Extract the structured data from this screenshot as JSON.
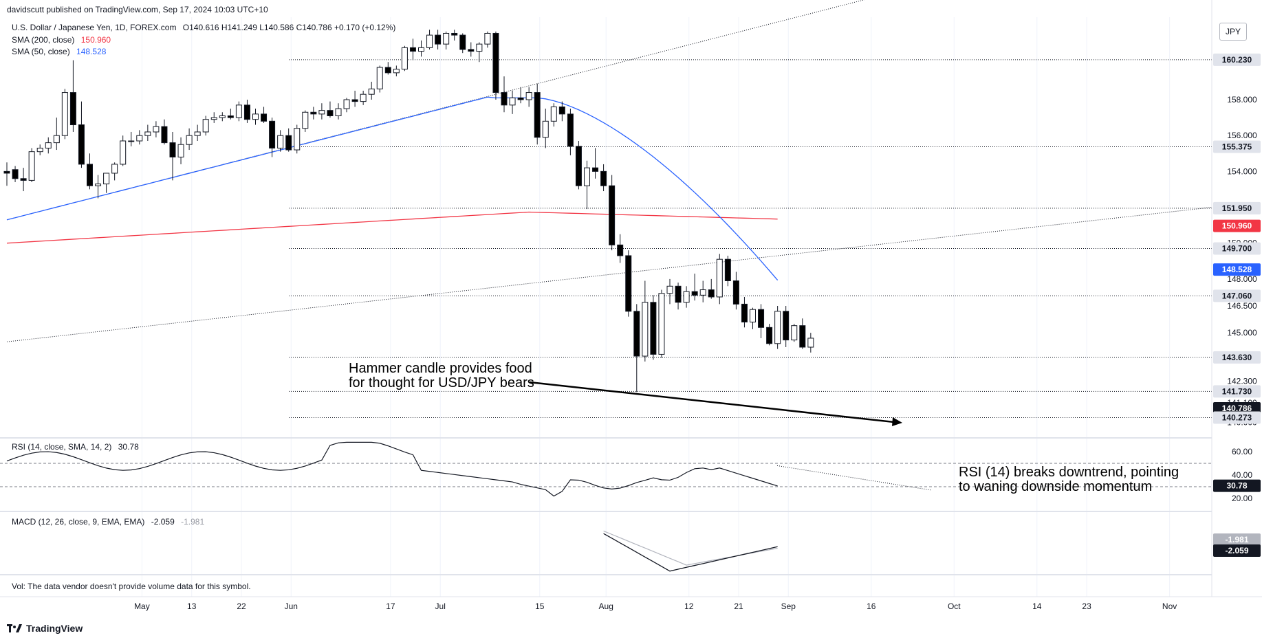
{
  "header": {
    "publisher": "davidscutt published on TradingView.com, Sep 17, 2024 10:03 UTC+10",
    "symbol": "U.S. Dollar / Japanese Yen, 1D, FOREX.com",
    "ohlc": "O140.616 H141.249 L140.586 C140.786 +0.170 (+0.12%)"
  },
  "currency_button": "JPY",
  "indicators": {
    "sma200": {
      "label": "SMA (200, close)",
      "value": "150.960",
      "color": "#f23645"
    },
    "sma50": {
      "label": "SMA (50, close)",
      "value": "148.528",
      "color": "#2962ff"
    },
    "rsi": {
      "label": "RSI (14, close, SMA, 14, 2)",
      "value": "30.78"
    },
    "macd": {
      "label": "MACD (12, 26, close, 9, EMA, EMA)",
      "value": "-2.059",
      "signal": "-1.981"
    }
  },
  "volume_note": "Vol: The data vendor doesn't provide volume data for this symbol.",
  "annotations": {
    "hammer": [
      "Hammer candle provides food",
      "for thought for USD/JPY bears"
    ],
    "rsi": [
      "RSI (14) breaks downtrend, pointing",
      "to waning downside momentum"
    ]
  },
  "footer_logo": "TradingView",
  "chart_data": [
    {
      "type": "candlestick",
      "title": "U.S. Dollar / Japanese Yen, 1D, FOREX.com",
      "ylim": [
        139.6,
        162.6
      ],
      "y_ticks": [
        158.0,
        156.0,
        154.0,
        150.0,
        148.0,
        146.5,
        145.0,
        142.3,
        141.1,
        140.0
      ],
      "x_tick_labels": [
        "May",
        "13",
        "22",
        "Jun",
        "17",
        "Jul",
        "15",
        "Aug",
        "12",
        "21",
        "Sep",
        "16",
        "Oct",
        "14",
        "23",
        "Nov"
      ],
      "x_tick_index": [
        8,
        14,
        20,
        26,
        38,
        44,
        56,
        64,
        74,
        80,
        86,
        96,
        106,
        116,
        122,
        132
      ],
      "candles": [
        [
          154.0,
          154.5,
          153.2,
          153.9
        ],
        [
          154.1,
          154.3,
          153.4,
          153.6
        ],
        [
          153.6,
          154.2,
          152.9,
          153.5
        ],
        [
          153.5,
          155.3,
          153.4,
          155.1
        ],
        [
          155.1,
          155.5,
          154.9,
          155.3
        ],
        [
          155.3,
          155.9,
          155.0,
          155.6
        ],
        [
          155.6,
          157.0,
          155.2,
          156.0
        ],
        [
          156.0,
          158.6,
          155.8,
          158.4
        ],
        [
          158.4,
          160.2,
          156.2,
          156.6
        ],
        [
          156.6,
          157.9,
          154.2,
          154.4
        ],
        [
          154.4,
          155.0,
          153.0,
          153.2
        ],
        [
          153.2,
          153.8,
          152.5,
          153.3
        ],
        [
          153.3,
          153.9,
          152.8,
          153.9
        ],
        [
          153.9,
          154.5,
          153.5,
          154.4
        ],
        [
          154.4,
          156.0,
          154.3,
          155.7
        ],
        [
          155.7,
          156.2,
          155.4,
          155.7
        ],
        [
          155.7,
          156.3,
          155.5,
          156.0
        ],
        [
          156.0,
          156.6,
          155.7,
          156.2
        ],
        [
          156.2,
          156.8,
          155.9,
          156.5
        ],
        [
          156.5,
          156.9,
          155.5,
          155.6
        ],
        [
          155.6,
          156.2,
          153.5,
          154.8
        ],
        [
          154.8,
          155.9,
          154.4,
          155.5
        ],
        [
          155.5,
          156.4,
          155.2,
          156.0
        ],
        [
          156.0,
          156.6,
          155.7,
          156.2
        ],
        [
          156.2,
          157.1,
          156.0,
          156.9
        ],
        [
          156.9,
          157.3,
          156.7,
          157.0
        ],
        [
          157.0,
          157.3,
          156.8,
          157.1
        ],
        [
          157.1,
          157.5,
          156.9,
          157.0
        ],
        [
          157.0,
          157.9,
          156.8,
          157.7
        ],
        [
          157.7,
          158.0,
          156.7,
          156.9
        ],
        [
          156.9,
          157.5,
          156.6,
          157.2
        ],
        [
          157.2,
          157.6,
          156.7,
          156.8
        ],
        [
          156.8,
          157.0,
          154.8,
          155.3
        ],
        [
          155.3,
          156.3,
          155.1,
          156.0
        ],
        [
          156.0,
          156.4,
          155.1,
          155.2
        ],
        [
          155.2,
          156.6,
          155.0,
          156.4
        ],
        [
          156.4,
          157.4,
          156.2,
          157.3
        ],
        [
          157.3,
          157.6,
          156.9,
          157.2
        ],
        [
          157.2,
          157.8,
          156.9,
          157.4
        ],
        [
          157.4,
          157.9,
          157.0,
          157.1
        ],
        [
          157.1,
          157.8,
          156.9,
          157.5
        ],
        [
          157.5,
          158.1,
          157.3,
          158.0
        ],
        [
          158.0,
          158.5,
          157.6,
          157.9
        ],
        [
          157.9,
          158.5,
          157.7,
          158.3
        ],
        [
          158.3,
          159.0,
          158.0,
          158.6
        ],
        [
          158.6,
          159.9,
          158.4,
          159.8
        ],
        [
          159.8,
          160.1,
          159.4,
          159.5
        ],
        [
          159.5,
          159.9,
          159.3,
          159.7
        ],
        [
          159.7,
          161.0,
          159.6,
          160.9
        ],
        [
          160.9,
          161.4,
          160.2,
          160.7
        ],
        [
          160.7,
          161.3,
          160.4,
          160.9
        ],
        [
          160.9,
          161.9,
          160.8,
          161.6
        ],
        [
          161.6,
          161.9,
          160.8,
          161.1
        ],
        [
          161.1,
          161.8,
          160.8,
          161.7
        ],
        [
          161.7,
          161.9,
          161.3,
          161.6
        ],
        [
          161.6,
          161.7,
          160.6,
          160.8
        ],
        [
          160.8,
          161.2,
          160.4,
          160.7
        ],
        [
          160.7,
          161.2,
          160.1,
          161.1
        ],
        [
          161.1,
          161.8,
          160.9,
          161.7
        ],
        [
          161.7,
          161.8,
          158.0,
          158.4
        ],
        [
          158.4,
          159.3,
          157.3,
          157.7
        ],
        [
          157.7,
          158.5,
          157.2,
          158.1
        ],
        [
          158.1,
          158.7,
          157.8,
          158.0
        ],
        [
          158.0,
          158.7,
          157.6,
          158.4
        ],
        [
          158.4,
          158.9,
          155.5,
          155.9
        ],
        [
          155.9,
          157.5,
          155.3,
          156.8
        ],
        [
          156.8,
          157.8,
          156.5,
          157.6
        ],
        [
          157.6,
          157.9,
          156.8,
          157.2
        ],
        [
          157.2,
          157.5,
          154.9,
          155.4
        ],
        [
          155.4,
          155.7,
          153.0,
          153.2
        ],
        [
          153.2,
          154.6,
          151.9,
          154.2
        ],
        [
          154.2,
          155.3,
          153.6,
          154.0
        ],
        [
          154.0,
          154.4,
          152.9,
          153.2
        ],
        [
          153.2,
          153.8,
          149.6,
          149.9
        ],
        [
          149.9,
          150.5,
          148.9,
          149.3
        ],
        [
          149.3,
          149.6,
          145.9,
          146.2
        ],
        [
          146.2,
          146.6,
          141.7,
          143.7
        ],
        [
          143.7,
          147.9,
          143.4,
          146.7
        ],
        [
          146.7,
          147.1,
          143.5,
          143.8
        ],
        [
          143.8,
          147.4,
          143.6,
          147.2
        ],
        [
          147.2,
          148.0,
          146.6,
          147.6
        ],
        [
          147.6,
          147.8,
          146.3,
          146.7
        ],
        [
          146.7,
          147.6,
          146.4,
          147.3
        ],
        [
          147.3,
          148.3,
          146.8,
          147.1
        ],
        [
          147.1,
          147.9,
          146.7,
          147.4
        ],
        [
          147.4,
          148.0,
          146.9,
          147.0
        ],
        [
          147.0,
          149.4,
          146.6,
          149.1
        ],
        [
          149.1,
          149.3,
          147.6,
          147.9
        ],
        [
          147.9,
          148.4,
          146.3,
          146.6
        ],
        [
          146.6,
          147.0,
          145.3,
          145.6
        ],
        [
          145.6,
          146.4,
          145.2,
          146.3
        ],
        [
          146.3,
          146.6,
          144.7,
          145.3
        ],
        [
          145.3,
          145.5,
          144.3,
          144.4
        ],
        [
          144.4,
          146.5,
          144.1,
          146.2
        ],
        [
          146.2,
          146.5,
          144.2,
          144.6
        ],
        [
          144.6,
          145.5,
          144.5,
          145.4
        ],
        [
          145.4,
          145.8,
          144.1,
          144.2
        ],
        [
          144.2,
          145.0,
          143.9,
          144.7
        ]
      ]
    },
    {
      "type": "line",
      "title": "RSI (14, close, SMA, 14, 2)",
      "ylim": [
        10,
        70
      ],
      "y_ticks": [
        60.0,
        40.0,
        20.0
      ],
      "reference_levels": [
        50,
        30
      ],
      "series": [
        {
          "name": "RSI",
          "values": [
            30.78
          ]
        }
      ]
    },
    {
      "type": "line",
      "title": "MACD (12, 26, close, 9, EMA, EMA)",
      "series": [
        {
          "name": "MACD",
          "values": [
            -2.059
          ]
        },
        {
          "name": "Signal",
          "values": [
            -1.981
          ]
        }
      ]
    }
  ],
  "price_labels": [
    {
      "text": "160.230",
      "value": 160.23,
      "kind": "level"
    },
    {
      "text": "155.375",
      "value": 155.375,
      "kind": "level"
    },
    {
      "text": "151.950",
      "value": 151.95,
      "kind": "level"
    },
    {
      "text": "150.960",
      "value": 150.96,
      "kind": "sma200"
    },
    {
      "text": "149.700",
      "value": 149.7,
      "kind": "level"
    },
    {
      "text": "148.528",
      "value": 148.528,
      "kind": "sma50"
    },
    {
      "text": "147.060",
      "value": 147.06,
      "kind": "level"
    },
    {
      "text": "143.630",
      "value": 143.63,
      "kind": "level"
    },
    {
      "text": "141.730",
      "value": 141.73,
      "kind": "level"
    },
    {
      "text": "140.786",
      "value": 140.786,
      "kind": "close"
    },
    {
      "text": "140.273",
      "value": 140.273,
      "kind": "level"
    }
  ],
  "rsi_label": "30.78",
  "macd_labels": [
    {
      "text": "-1.981",
      "kind": "signal"
    },
    {
      "text": "-2.059",
      "kind": "macd"
    }
  ],
  "colors": {
    "candle_up": "#ffffff",
    "candle_down": "#000000",
    "sma200": "#f23645",
    "sma50": "#2962ff",
    "grid": "#e0e3eb",
    "text": "#131722"
  }
}
